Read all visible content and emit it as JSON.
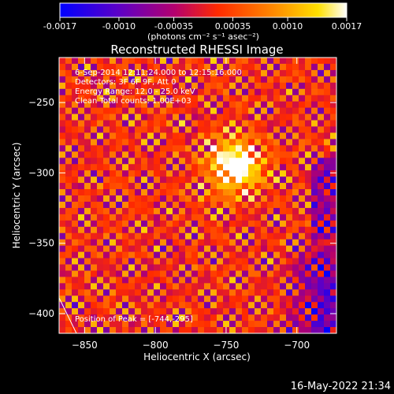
{
  "chart_data": {
    "type": "heatmap",
    "title": "Reconstructed RHESSI Image",
    "xlabel": "Heliocentric X (arcsec)",
    "ylabel": "Heliocentric Y (arcsec)",
    "xlim": [
      -868,
      -672
    ],
    "ylim": [
      -414,
      -218
    ],
    "x_ticks": [
      -850,
      -800,
      -750,
      -700
    ],
    "y_ticks": [
      -400,
      -350,
      -300,
      -250
    ],
    "colorbar": {
      "ticks": [
        "-0.0017",
        "-0.0010",
        "-0.00035",
        "0.00035",
        "0.0010",
        "0.0017"
      ],
      "tick_values": [
        -0.0017,
        -0.001,
        -0.00035,
        0.00035,
        0.001,
        0.0017
      ],
      "range": [
        -0.0017,
        0.0017
      ],
      "units_line": "(photons cm⁻² s⁻¹ asec⁻²)",
      "colors": [
        "#0000ff",
        "#5a00c8",
        "#b4006e",
        "#ff2a00",
        "#ff8c00",
        "#ffe000",
        "#ffffff"
      ]
    },
    "info_lines": [
      "6-Sep-2014 12:11:24.000 to 12:15:16.000",
      "Detectors: 3F 6F 9F, Att 0",
      "Energy Range: 12.0 - 25.0 keV",
      "Clean    Total counts: 1.00E+03"
    ],
    "peak": {
      "x": -744,
      "y": -295,
      "label": "Position of Peak = [-744,-295]"
    },
    "image_desc": "CLEAN map with ring-like sidelobe pattern; brightest source near peak, blue-purple negative region lower right"
  },
  "timestamp": "16-May-2022 21:34"
}
